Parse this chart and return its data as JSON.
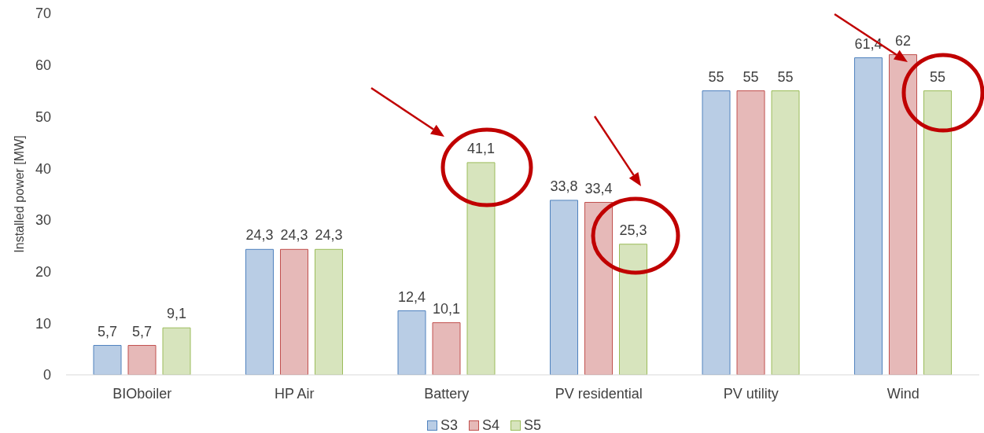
{
  "chart_data": {
    "type": "bar",
    "ylabel": "Installed power [MW]",
    "categories": [
      "BIOboiler",
      "HP Air",
      "Battery",
      "PV residential",
      "PV utility",
      "Wind"
    ],
    "series": [
      {
        "name": "S3",
        "color": "#b9cde5",
        "values": [
          5.7,
          24.3,
          12.4,
          33.8,
          55,
          61.4
        ],
        "value_labels": [
          "5,7",
          "24,3",
          "12,4",
          "33,8",
          "55",
          "61,4"
        ]
      },
      {
        "name": "S4",
        "color": "#e6b9b8",
        "values": [
          5.7,
          24.3,
          10.1,
          33.4,
          55,
          62
        ],
        "value_labels": [
          "5,7",
          "24,3",
          "10,1",
          "33,4",
          "55",
          "62"
        ]
      },
      {
        "name": "S5",
        "color": "#d7e4bd",
        "values": [
          9.1,
          24.3,
          41.1,
          25.3,
          55,
          55
        ],
        "value_labels": [
          "9,1",
          "24,3",
          "41,1",
          "25,3",
          "55",
          "55"
        ]
      }
    ],
    "ylim": [
      0,
      70
    ],
    "yticks": [
      0,
      10,
      20,
      30,
      40,
      50,
      60,
      70
    ],
    "grid": false,
    "legend": "bottom"
  }
}
